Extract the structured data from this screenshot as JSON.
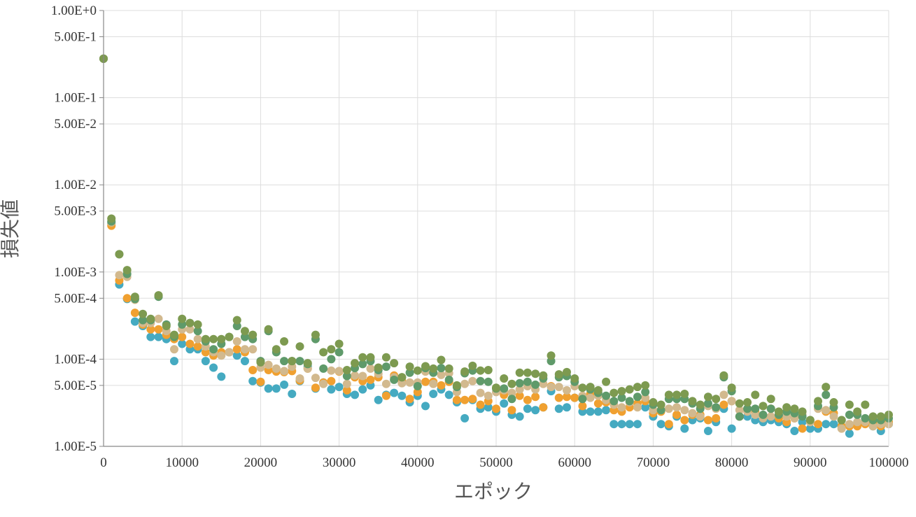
{
  "chart_data": {
    "type": "scatter",
    "title": "",
    "xlabel": "エポック",
    "ylabel": "損失値",
    "xlim": [
      0,
      100000
    ],
    "ylim": [
      1e-05,
      1
    ],
    "y_scale": "log",
    "grid": true,
    "legend": "none",
    "x_ticks": [
      0,
      10000,
      20000,
      30000,
      40000,
      50000,
      60000,
      70000,
      80000,
      90000,
      100000
    ],
    "x_tick_labels": [
      "0",
      "10000",
      "20000",
      "30000",
      "40000",
      "50000",
      "60000",
      "70000",
      "80000",
      "90000",
      "100000"
    ],
    "y_ticks": [
      1e-05,
      5e-05,
      0.0001,
      0.0005,
      0.001,
      0.005,
      0.01,
      0.05,
      0.1,
      0.5,
      1
    ],
    "y_tick_labels": [
      "1.00E-5",
      "5.00E-5",
      "1.00E-4",
      "5.00E-4",
      "1.00E-3",
      "5.00E-3",
      "1.00E-2",
      "5.00E-2",
      "1.00E-1",
      "5.00E-1",
      "1.00E+0"
    ],
    "colors": {
      "grid": "#dddddd",
      "axis": "#888888",
      "series": [
        "#45aac1",
        "#f0a030",
        "#d2b98e",
        "#5f9a6a",
        "#7d9a50"
      ]
    },
    "series": [
      {
        "x": [
          0,
          1000,
          2000,
          3000,
          4000,
          5000,
          6000,
          7000,
          8000,
          9000,
          10000,
          11000,
          12000,
          13000,
          14000,
          15000,
          16000,
          17000,
          18000,
          19000,
          20000,
          21000,
          22000,
          23000,
          24000,
          25000,
          26000,
          27000,
          28000,
          29000,
          30000,
          31000,
          32000,
          33000,
          34000,
          35000,
          36000,
          37000,
          38000,
          39000,
          40000,
          41000,
          42000,
          43000,
          44000,
          45000,
          46000,
          47000,
          48000,
          49000,
          50000,
          51000,
          52000,
          53000,
          54000,
          55000,
          56000,
          57000,
          58000,
          59000,
          60000,
          61000,
          62000,
          63000,
          64000,
          65000,
          66000,
          67000,
          68000,
          69000,
          70000,
          71000,
          72000,
          73000,
          74000,
          75000,
          76000,
          77000,
          78000,
          79000,
          80000,
          81000,
          82000,
          83000,
          84000,
          85000,
          86000,
          87000,
          88000,
          89000,
          90000,
          91000,
          92000,
          93000,
          94000,
          95000,
          96000,
          97000,
          98000,
          99000,
          100000
        ],
        "y": [
          0.28,
          0.0036,
          0.00072,
          0.00049,
          0.00027,
          0.00024,
          0.00018,
          0.00018,
          0.00017,
          9.5e-05,
          0.00015,
          0.00013,
          0.00013,
          9.5e-05,
          8e-05,
          6.3e-05,
          0.00012,
          0.00011,
          9.5e-05,
          5.6e-05,
          5.4e-05,
          4.6e-05,
          4.6e-05,
          5.1e-05,
          4e-05,
          5.6e-05,
          8.2e-05,
          4.6e-05,
          5.4e-05,
          4.5e-05,
          4.8e-05,
          4e-05,
          3.9e-05,
          4.5e-05,
          5e-05,
          3.4e-05,
          3.9e-05,
          4.1e-05,
          3.8e-05,
          3.2e-05,
          3.8e-05,
          2.9e-05,
          4e-05,
          4.5e-05,
          3.9e-05,
          3.2e-05,
          2.1e-05,
          3.4e-05,
          2.7e-05,
          2.8e-05,
          2.5e-05,
          3.1e-05,
          2.3e-05,
          2.2e-05,
          2.7e-05,
          2.6e-05,
          2.8e-05,
          4.3e-05,
          2.7e-05,
          2.8e-05,
          3.6e-05,
          2.5e-05,
          2.5e-05,
          2.5e-05,
          2.6e-05,
          1.8e-05,
          1.8e-05,
          1.8e-05,
          1.8e-05,
          2.8e-05,
          2.2e-05,
          1.8e-05,
          1.7e-05,
          2.2e-05,
          1.6e-05,
          2e-05,
          2.1e-05,
          1.5e-05,
          1.9e-05,
          2.7e-05,
          1.6e-05,
          2.2e-05,
          2.2e-05,
          2e-05,
          1.9e-05,
          2e-05,
          1.9e-05,
          1.8e-05,
          1.5e-05,
          1.9e-05,
          1.6e-05,
          1.6e-05,
          1.8e-05,
          1.8e-05,
          1.7e-05,
          1.4e-05,
          1.8e-05,
          1.9e-05,
          1.7e-05,
          1.5e-05,
          1.8e-05
        ]
      },
      {
        "x": [
          0,
          1000,
          2000,
          3000,
          4000,
          5000,
          6000,
          7000,
          8000,
          9000,
          10000,
          11000,
          12000,
          13000,
          14000,
          15000,
          16000,
          17000,
          18000,
          19000,
          20000,
          21000,
          22000,
          23000,
          24000,
          25000,
          26000,
          27000,
          28000,
          29000,
          30000,
          31000,
          32000,
          33000,
          34000,
          35000,
          36000,
          37000,
          38000,
          39000,
          40000,
          41000,
          42000,
          43000,
          44000,
          45000,
          46000,
          47000,
          48000,
          49000,
          50000,
          51000,
          52000,
          53000,
          54000,
          55000,
          56000,
          57000,
          58000,
          59000,
          60000,
          61000,
          62000,
          63000,
          64000,
          65000,
          66000,
          67000,
          68000,
          69000,
          70000,
          71000,
          72000,
          73000,
          74000,
          75000,
          76000,
          77000,
          78000,
          79000,
          80000,
          81000,
          82000,
          83000,
          84000,
          85000,
          86000,
          87000,
          88000,
          89000,
          90000,
          91000,
          92000,
          93000,
          94000,
          95000,
          96000,
          97000,
          98000,
          99000,
          100000
        ],
        "y": [
          0.28,
          0.0034,
          0.0008,
          0.0005,
          0.00034,
          0.00025,
          0.00022,
          0.00022,
          0.00019,
          0.00017,
          0.00018,
          0.00015,
          0.00014,
          0.00012,
          0.00011,
          0.00012,
          0.00012,
          0.00013,
          0.00012,
          7.5e-05,
          5.5e-05,
          7.5e-05,
          7.2e-05,
          7.1e-05,
          7.3e-05,
          5.7e-05,
          7.8e-05,
          4.7e-05,
          5.4e-05,
          5.6e-05,
          7.2e-05,
          4.4e-05,
          6.2e-05,
          5.6e-05,
          5.8e-05,
          6.2e-05,
          3.8e-05,
          6.5e-05,
          5.6e-05,
          3.5e-05,
          4.2e-05,
          5.5e-05,
          5.5e-05,
          5e-05,
          5.5e-05,
          3.4e-05,
          3.4e-05,
          3.5e-05,
          3e-05,
          3.3e-05,
          2.7e-05,
          3.9e-05,
          2.6e-05,
          3.8e-05,
          3.4e-05,
          3.7e-05,
          2.8e-05,
          4.9e-05,
          3.6e-05,
          3.7e-05,
          3.6e-05,
          2.9e-05,
          4e-05,
          3.1e-05,
          3.2e-05,
          2.6e-05,
          2.5e-05,
          2.8e-05,
          3.1e-05,
          3.3e-05,
          2.4e-05,
          2.5e-05,
          1.8e-05,
          2.3e-05,
          2e-05,
          2.3e-05,
          2.3e-05,
          2e-05,
          2.1e-05,
          3e-05,
          3.3e-05,
          2.2e-05,
          2.7e-05,
          2.5e-05,
          2.2e-05,
          2.7e-05,
          2.1e-05,
          1.9e-05,
          2.1e-05,
          1.6e-05,
          1.9e-05,
          1.8e-05,
          2.5e-05,
          2.4e-05,
          1.7e-05,
          1.7e-05,
          1.7e-05,
          1.8e-05,
          1.9e-05,
          1.7e-05,
          1.9e-05
        ]
      },
      {
        "x": [
          0,
          1000,
          2000,
          3000,
          4000,
          5000,
          6000,
          7000,
          8000,
          9000,
          10000,
          11000,
          12000,
          13000,
          14000,
          15000,
          16000,
          17000,
          18000,
          19000,
          20000,
          21000,
          22000,
          23000,
          24000,
          25000,
          26000,
          27000,
          28000,
          29000,
          30000,
          31000,
          32000,
          33000,
          34000,
          35000,
          36000,
          37000,
          38000,
          39000,
          40000,
          41000,
          42000,
          43000,
          44000,
          45000,
          46000,
          47000,
          48000,
          49000,
          50000,
          51000,
          52000,
          53000,
          54000,
          55000,
          56000,
          57000,
          58000,
          59000,
          60000,
          61000,
          62000,
          63000,
          64000,
          65000,
          66000,
          67000,
          68000,
          69000,
          70000,
          71000,
          72000,
          73000,
          74000,
          75000,
          76000,
          77000,
          78000,
          79000,
          80000,
          81000,
          82000,
          83000,
          84000,
          85000,
          86000,
          87000,
          88000,
          89000,
          90000,
          91000,
          92000,
          93000,
          94000,
          95000,
          96000,
          97000,
          98000,
          99000,
          100000
        ],
        "y": [
          0.28,
          0.0037,
          0.00092,
          0.00088,
          0.00048,
          0.00026,
          0.00026,
          0.00029,
          0.00021,
          0.00013,
          0.00022,
          0.00022,
          0.00017,
          0.00014,
          0.00012,
          0.00011,
          0.00012,
          0.00016,
          0.00013,
          0.00013,
          8e-05,
          8.6e-05,
          7.8e-05,
          7.3e-05,
          8.2e-05,
          6e-05,
          7.8e-05,
          6.1e-05,
          5.2e-05,
          7.4e-05,
          7.3e-05,
          5.2e-05,
          6.5e-05,
          6.4e-05,
          7.8e-05,
          6.8e-05,
          5.2e-05,
          6.2e-05,
          5.3e-05,
          5.4e-05,
          5.4e-05,
          7.2e-05,
          5.2e-05,
          6.6e-05,
          6.9e-05,
          4.2e-05,
          5.2e-05,
          5.6e-05,
          4.1e-05,
          3.8e-05,
          4.2e-05,
          4.4e-05,
          4.1e-05,
          4.5e-05,
          4.9e-05,
          4.5e-05,
          5.2e-05,
          4.8e-05,
          4.8e-05,
          4.4e-05,
          4.9e-05,
          3.8e-05,
          3.6e-05,
          3.8e-05,
          3.4e-05,
          3e-05,
          2.8e-05,
          3.2e-05,
          2.8e-05,
          3.6e-05,
          2.6e-05,
          2.6e-05,
          2.7e-05,
          2.8e-05,
          2.6e-05,
          2.4e-05,
          2.2e-05,
          2.9e-05,
          2.7e-05,
          3.9e-05,
          3.3e-05,
          2.6e-05,
          2.5e-05,
          2.3e-05,
          2.1e-05,
          2.2e-05,
          2.3e-05,
          2.2e-05,
          2.1e-05,
          2.3e-05,
          1.9e-05,
          2.7e-05,
          2.6e-05,
          2.2e-05,
          1.6e-05,
          1.8e-05,
          1.9e-05,
          1.9e-05,
          1.7e-05,
          1.8e-05,
          1.8e-05
        ]
      },
      {
        "x": [
          0,
          1000,
          2000,
          3000,
          4000,
          5000,
          6000,
          7000,
          8000,
          9000,
          10000,
          11000,
          12000,
          13000,
          14000,
          15000,
          16000,
          17000,
          18000,
          19000,
          20000,
          21000,
          22000,
          23000,
          24000,
          25000,
          26000,
          27000,
          28000,
          29000,
          30000,
          31000,
          32000,
          33000,
          34000,
          35000,
          36000,
          37000,
          38000,
          39000,
          40000,
          41000,
          42000,
          43000,
          44000,
          45000,
          46000,
          47000,
          48000,
          49000,
          50000,
          51000,
          52000,
          53000,
          54000,
          55000,
          56000,
          57000,
          58000,
          59000,
          60000,
          61000,
          62000,
          63000,
          64000,
          65000,
          66000,
          67000,
          68000,
          69000,
          70000,
          71000,
          72000,
          73000,
          74000,
          75000,
          76000,
          77000,
          78000,
          79000,
          80000,
          81000,
          82000,
          83000,
          84000,
          85000,
          86000,
          87000,
          88000,
          89000,
          90000,
          91000,
          92000,
          93000,
          94000,
          95000,
          96000,
          97000,
          98000,
          99000,
          100000
        ],
        "y": [
          0.28,
          0.0038,
          0.0016,
          0.00095,
          0.00049,
          0.00028,
          0.00028,
          0.00052,
          0.00025,
          0.00018,
          0.00025,
          0.00026,
          0.00021,
          0.00016,
          0.00013,
          0.00015,
          0.00018,
          0.00024,
          0.00018,
          0.00017,
          9.5e-05,
          0.00021,
          0.00012,
          9.5e-05,
          9.5e-05,
          9.5e-05,
          8.8e-05,
          0.00017,
          7.8e-05,
          0.0001,
          0.00012,
          6.4e-05,
          7.9e-05,
          8.8e-05,
          9.5e-05,
          7.5e-05,
          8.2e-05,
          5.8e-05,
          6.2e-05,
          7e-05,
          4.9e-05,
          7.9e-05,
          7e-05,
          7.9e-05,
          5.8e-05,
          4.8e-05,
          6.9e-05,
          7.4e-05,
          5.6e-05,
          5.5e-05,
          4.6e-05,
          4.6e-05,
          3.5e-05,
          5.3e-05,
          5.5e-05,
          5.1e-05,
          6e-05,
          9.5e-05,
          6.2e-05,
          6.4e-05,
          5.5e-05,
          3.5e-05,
          4.5e-05,
          4.1e-05,
          3.8e-05,
          3.3e-05,
          3.6e-05,
          3.3e-05,
          3.7e-05,
          4.2e-05,
          3e-05,
          2.6e-05,
          3.5e-05,
          3.5e-05,
          3.5e-05,
          3.1e-05,
          2.7e-05,
          3.1e-05,
          2.8e-05,
          6.2e-05,
          4.3e-05,
          2.2e-05,
          2.7e-05,
          2.7e-05,
          2.3e-05,
          2.7e-05,
          2.3e-05,
          2.5e-05,
          2.4e-05,
          2.2e-05,
          2e-05,
          2.9e-05,
          3.9e-05,
          2.8e-05,
          2e-05,
          2.3e-05,
          2.3e-05,
          2.1e-05,
          2e-05,
          2e-05,
          2.1e-05
        ]
      },
      {
        "x": [
          0,
          1000,
          2000,
          3000,
          4000,
          5000,
          6000,
          7000,
          8000,
          9000,
          10000,
          11000,
          12000,
          13000,
          14000,
          15000,
          16000,
          17000,
          18000,
          19000,
          20000,
          21000,
          22000,
          23000,
          24000,
          25000,
          26000,
          27000,
          28000,
          29000,
          30000,
          31000,
          32000,
          33000,
          34000,
          35000,
          36000,
          37000,
          38000,
          39000,
          40000,
          41000,
          42000,
          43000,
          44000,
          45000,
          46000,
          47000,
          48000,
          49000,
          50000,
          51000,
          52000,
          53000,
          54000,
          55000,
          56000,
          57000,
          58000,
          59000,
          60000,
          61000,
          62000,
          63000,
          64000,
          65000,
          66000,
          67000,
          68000,
          69000,
          70000,
          71000,
          72000,
          73000,
          74000,
          75000,
          76000,
          77000,
          78000,
          79000,
          80000,
          81000,
          82000,
          83000,
          84000,
          85000,
          86000,
          87000,
          88000,
          89000,
          90000,
          91000,
          92000,
          93000,
          94000,
          95000,
          96000,
          97000,
          98000,
          99000,
          100000
        ],
        "y": [
          0.28,
          0.0041,
          0.0016,
          0.00105,
          0.00052,
          0.00033,
          0.00029,
          0.00054,
          0.00024,
          0.00019,
          0.00029,
          0.00026,
          0.00025,
          0.00017,
          0.00017,
          0.00017,
          0.00018,
          0.00028,
          0.00021,
          0.00019,
          9.2e-05,
          0.00022,
          0.00013,
          0.00016,
          9.5e-05,
          0.00014,
          9e-05,
          0.00019,
          0.00012,
          0.00013,
          0.00015,
          7.5e-05,
          9e-05,
          0.000105,
          0.000105,
          8e-05,
          0.000105,
          9e-05,
          6.2e-05,
          8.2e-05,
          7.4e-05,
          8.3e-05,
          7.8e-05,
          9.8e-05,
          7.8e-05,
          5e-05,
          7.2e-05,
          8.4e-05,
          7.4e-05,
          7.5e-05,
          4.7e-05,
          6e-05,
          5.2e-05,
          7e-05,
          7e-05,
          6.8e-05,
          6.5e-05,
          0.00011,
          6.7e-05,
          7.1e-05,
          6e-05,
          4.7e-05,
          4.8e-05,
          4.4e-05,
          5.5e-05,
          4.1e-05,
          4.3e-05,
          4.5e-05,
          4.8e-05,
          5e-05,
          3.2e-05,
          3e-05,
          3.9e-05,
          3.9e-05,
          4e-05,
          3.3e-05,
          3e-05,
          3.7e-05,
          3.5e-05,
          6.5e-05,
          4.7e-05,
          3.1e-05,
          3.2e-05,
          3.9e-05,
          2.9e-05,
          3.5e-05,
          2.5e-05,
          2.8e-05,
          2.7e-05,
          2.5e-05,
          2e-05,
          3.3e-05,
          4.8e-05,
          3.2e-05,
          2e-05,
          3e-05,
          2.5e-05,
          3e-05,
          2.2e-05,
          2.2e-05,
          2.3e-05
        ]
      }
    ]
  }
}
